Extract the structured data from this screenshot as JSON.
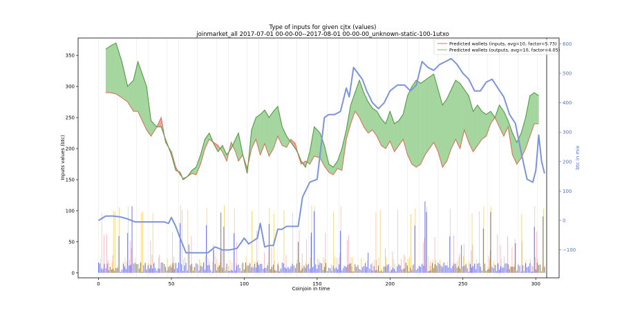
{
  "chart_data": {
    "type": "line",
    "title": "Type of inputs for given cjtx (values)",
    "subtitle": "joinmarket_all 2017-07-01 00-00-00--2017-08-01 00-00-00_unknown-static-100-1utxo",
    "xlabel": "Coinjoin in time",
    "ylabel": "Inputs values (btc)",
    "ylabel_right": "btc in mix",
    "xlim": [
      -14,
      316
    ],
    "ylim": [
      -8,
      378
    ],
    "ylim_right": [
      -195,
      620
    ],
    "x_ticks": [
      0,
      50,
      100,
      150,
      200,
      250,
      300
    ],
    "y_ticks": [
      0,
      50,
      100,
      150,
      200,
      250,
      300,
      350
    ],
    "y_ticks_right": [
      -100,
      0,
      100,
      200,
      300,
      400,
      500,
      600
    ],
    "grid": "vertical faint lines at selected coinjoins",
    "legend_position": "top-right",
    "colors": {
      "inputs_line": "#d9735b",
      "outputs_line": "#4f9a40",
      "fill_outputs_higher": "#a6d6a0",
      "fill_inputs_higher": "#f5a3a3",
      "btc_in_mix": "#7b93dc",
      "right_axis": "#4d70d1",
      "blue_bars": "#5c62e6",
      "yellow_bars": "#f6cf6a",
      "pink_bars": "#f2a5b5"
    },
    "series": [
      {
        "name": "Predicted wallets (inputs, avg=10, factor=5.73)",
        "axis": "left",
        "x": [
          5,
          8,
          12,
          16,
          20,
          24,
          27,
          30,
          33,
          36,
          40,
          43,
          46,
          50,
          53,
          56,
          58,
          61,
          64,
          67,
          70,
          73,
          76,
          79,
          82,
          85,
          88,
          91,
          94,
          96,
          99,
          102,
          105,
          108,
          111,
          114,
          117,
          120,
          123,
          126,
          129,
          132,
          135,
          137,
          139,
          142,
          145,
          148,
          152,
          155,
          158,
          161,
          164,
          167,
          170,
          173,
          176,
          179,
          182,
          185,
          188,
          191,
          194,
          197,
          200,
          203,
          206,
          209,
          212,
          215,
          218,
          221,
          224,
          227,
          230,
          233,
          236,
          239,
          242,
          245,
          248,
          251,
          254,
          257,
          260,
          263,
          266,
          269,
          272,
          275,
          278,
          281,
          284,
          287,
          290,
          293,
          296,
          299,
          302
        ],
        "values": [
          290,
          290,
          288,
          282,
          275,
          260,
          260,
          245,
          230,
          220,
          235,
          250,
          210,
          195,
          170,
          158,
          152,
          155,
          160,
          158,
          175,
          200,
          215,
          210,
          205,
          195,
          180,
          210,
          195,
          180,
          190,
          168,
          200,
          215,
          190,
          208,
          188,
          200,
          220,
          205,
          202,
          215,
          208,
          190,
          175,
          180,
          175,
          188,
          185,
          172,
          162,
          158,
          168,
          165,
          215,
          240,
          260,
          250,
          235,
          225,
          230,
          220,
          205,
          200,
          212,
          195,
          205,
          215,
          190,
          175,
          170,
          175,
          190,
          200,
          210,
          195,
          170,
          180,
          200,
          215,
          200,
          230,
          210,
          195,
          205,
          215,
          220,
          240,
          250,
          235,
          220,
          235,
          190,
          175,
          185,
          200,
          220,
          240,
          240
        ]
      },
      {
        "name": "Predicted wallets (outputs, avg=10, factor=4.05)",
        "axis": "left",
        "x": [
          5,
          8,
          12,
          16,
          20,
          24,
          27,
          30,
          33,
          36,
          40,
          43,
          46,
          50,
          53,
          56,
          58,
          61,
          64,
          67,
          70,
          73,
          76,
          79,
          82,
          85,
          88,
          91,
          94,
          96,
          99,
          102,
          105,
          108,
          111,
          114,
          117,
          120,
          123,
          126,
          129,
          132,
          135,
          137,
          139,
          142,
          145,
          148,
          152,
          155,
          158,
          161,
          164,
          167,
          170,
          173,
          176,
          179,
          182,
          185,
          188,
          191,
          194,
          197,
          200,
          203,
          206,
          209,
          212,
          215,
          218,
          221,
          224,
          227,
          230,
          233,
          236,
          239,
          242,
          245,
          248,
          251,
          254,
          257,
          260,
          263,
          266,
          269,
          272,
          275,
          278,
          281,
          284,
          287,
          290,
          293,
          296,
          299,
          302
        ],
        "values": [
          360,
          365,
          370,
          340,
          300,
          310,
          340,
          320,
          300,
          245,
          235,
          235,
          215,
          190,
          165,
          162,
          150,
          155,
          165,
          170,
          190,
          215,
          225,
          208,
          195,
          205,
          190,
          200,
          215,
          225,
          190,
          160,
          230,
          250,
          255,
          262,
          250,
          260,
          268,
          235,
          220,
          210,
          200,
          192,
          180,
          170,
          195,
          235,
          225,
          205,
          175,
          170,
          180,
          200,
          230,
          270,
          290,
          310,
          290,
          275,
          265,
          260,
          248,
          240,
          260,
          240,
          245,
          255,
          285,
          300,
          310,
          305,
          310,
          315,
          320,
          295,
          270,
          280,
          295,
          310,
          305,
          295,
          285,
          260,
          270,
          260,
          255,
          260,
          250,
          270,
          260,
          245,
          225,
          210,
          225,
          250,
          285,
          290,
          285
        ]
      },
      {
        "name": "btc in mix",
        "axis": "right",
        "x": [
          0,
          5,
          10,
          15,
          20,
          25,
          30,
          35,
          40,
          45,
          48,
          50,
          53,
          56,
          60,
          65,
          70,
          75,
          80,
          85,
          90,
          95,
          100,
          103,
          106,
          109,
          111,
          114,
          117,
          120,
          123,
          126,
          129,
          133,
          137,
          140,
          145,
          150,
          155,
          158,
          162,
          166,
          170,
          172,
          175,
          178,
          181,
          184,
          188,
          192,
          196,
          200,
          205,
          210,
          214,
          218,
          222,
          226,
          230,
          234,
          238,
          242,
          246,
          250,
          254,
          258,
          262,
          266,
          270,
          274,
          278,
          282,
          286,
          290,
          294,
          298,
          300,
          302,
          304,
          306
        ],
        "values": [
          0,
          15,
          15,
          12,
          5,
          -5,
          -5,
          -5,
          -5,
          -5,
          -10,
          10,
          -20,
          -60,
          -110,
          -110,
          -110,
          -110,
          -90,
          -100,
          -100,
          -95,
          -60,
          -80,
          -70,
          -60,
          -10,
          -90,
          -85,
          -85,
          -30,
          -30,
          -20,
          -20,
          -20,
          80,
          130,
          140,
          350,
          360,
          360,
          370,
          450,
          420,
          520,
          500,
          480,
          440,
          400,
          380,
          400,
          440,
          460,
          460,
          440,
          460,
          540,
          520,
          510,
          530,
          540,
          550,
          530,
          500,
          480,
          440,
          440,
          470,
          480,
          450,
          420,
          360,
          330,
          230,
          140,
          130,
          170,
          290,
          200,
          160
        ]
      }
    ],
    "bars_note": "Per-coinjoin input value bars (blue, yellow, pink) drawn along the bottom"
  }
}
